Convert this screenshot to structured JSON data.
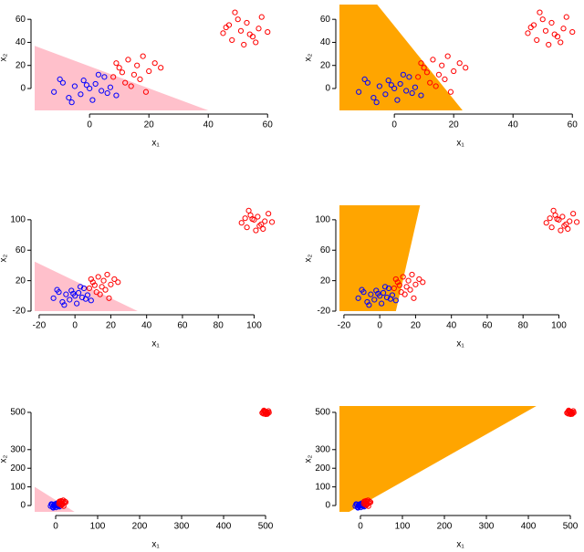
{
  "chart_data": [
    {
      "type": "scatter",
      "xlabel": "x₁",
      "ylabel": "x₂",
      "xlim": [
        -18.5,
        63
      ],
      "ylim": [
        -19,
        72.8
      ],
      "xticks": [
        0,
        20,
        40,
        60
      ],
      "yticks": [
        0,
        20,
        40,
        60
      ],
      "region": {
        "color": "#ffc0cb",
        "x": [
          -18.5,
          40,
          -18.5
        ],
        "y": [
          37,
          -19,
          -19
        ]
      },
      "series": [
        {
          "color": "#0000ff",
          "x": [
            -12,
            -9,
            -7,
            -5,
            -3,
            -2,
            0,
            1,
            2,
            4,
            5,
            7,
            9,
            -6,
            3,
            -1,
            6,
            -10
          ],
          "y": [
            -3,
            5,
            -8,
            2,
            -5,
            7,
            0,
            -10,
            4,
            -2,
            10,
            1,
            -6,
            -12,
            12,
            3,
            -4,
            8
          ]
        },
        {
          "color": "#ff0000",
          "x": [
            8,
            10,
            12,
            13,
            15,
            16,
            17,
            18,
            20,
            22,
            14,
            11,
            19,
            24,
            9,
            45,
            47,
            48,
            50,
            51,
            52,
            53,
            55,
            57,
            58,
            49,
            54,
            46,
            56,
            60
          ],
          "y": [
            10,
            18,
            5,
            25,
            12,
            20,
            8,
            28,
            15,
            22,
            2,
            14,
            -3,
            18,
            22,
            48,
            55,
            42,
            60,
            50,
            38,
            57,
            45,
            52,
            62,
            66,
            47,
            53,
            40,
            49
          ]
        }
      ]
    },
    {
      "type": "scatter",
      "xlabel": "x₁",
      "ylabel": "x₂",
      "xlim": [
        -18.5,
        63
      ],
      "ylim": [
        -19,
        72.8
      ],
      "xticks": [
        0,
        20,
        40,
        60
      ],
      "yticks": [
        0,
        20,
        40,
        60
      ],
      "region": {
        "color": "#ffa500",
        "x": [
          -18.5,
          -5.8,
          23,
          -18.5
        ],
        "y": [
          72.8,
          72.8,
          -19,
          -19
        ]
      },
      "series": [
        {
          "color": "#0000ff",
          "x": [
            -12,
            -9,
            -7,
            -5,
            -3,
            -2,
            0,
            1,
            2,
            4,
            5,
            7,
            9,
            -6,
            3,
            -1,
            6,
            -10
          ],
          "y": [
            -3,
            5,
            -8,
            2,
            -5,
            7,
            0,
            -10,
            4,
            -2,
            10,
            1,
            -6,
            -12,
            12,
            3,
            -4,
            8
          ]
        },
        {
          "color": "#ff0000",
          "x": [
            8,
            10,
            12,
            13,
            15,
            16,
            17,
            18,
            20,
            22,
            14,
            11,
            19,
            24,
            9,
            45,
            47,
            48,
            50,
            51,
            52,
            53,
            55,
            57,
            58,
            49,
            54,
            46,
            56,
            60
          ],
          "y": [
            10,
            18,
            5,
            25,
            12,
            20,
            8,
            28,
            15,
            22,
            2,
            14,
            -3,
            18,
            22,
            48,
            55,
            42,
            60,
            50,
            38,
            57,
            45,
            52,
            62,
            66,
            47,
            53,
            40,
            49
          ]
        }
      ]
    },
    {
      "type": "scatter",
      "xlabel": "x₁",
      "ylabel": "x₂",
      "xlim": [
        -22.5,
        112.5
      ],
      "ylim": [
        -20,
        119
      ],
      "xticks": [
        -20,
        0,
        20,
        40,
        60,
        80,
        100
      ],
      "yticks": [
        -20,
        20,
        60,
        100
      ],
      "region": {
        "color": "#ffc0cb",
        "x": [
          -22.5,
          35,
          -22.5
        ],
        "y": [
          45,
          -20,
          -20
        ]
      },
      "series": [
        {
          "color": "#0000ff",
          "x": [
            -12,
            -9,
            -7,
            -5,
            -3,
            -2,
            0,
            1,
            2,
            4,
            5,
            7,
            9,
            -6,
            3,
            -1,
            6,
            -10
          ],
          "y": [
            -3,
            5,
            -8,
            2,
            -5,
            7,
            0,
            -10,
            4,
            -2,
            10,
            1,
            -6,
            -12,
            12,
            3,
            -4,
            8
          ]
        },
        {
          "color": "#ff0000",
          "x": [
            8,
            10,
            12,
            13,
            15,
            16,
            17,
            18,
            20,
            22,
            14,
            11,
            19,
            24,
            9,
            93,
            95,
            96,
            98,
            100,
            101,
            102,
            104,
            106,
            108,
            97,
            103,
            99,
            105,
            110
          ],
          "y": [
            10,
            18,
            5,
            25,
            12,
            20,
            8,
            28,
            15,
            22,
            2,
            14,
            -3,
            18,
            22,
            96,
            102,
            90,
            106,
            100,
            86,
            104,
            94,
            98,
            108,
            112,
            92,
            101,
            88,
            97
          ]
        }
      ]
    },
    {
      "type": "scatter",
      "xlabel": "x₁",
      "ylabel": "x₂",
      "xlim": [
        -22.5,
        112.5
      ],
      "ylim": [
        -20,
        119
      ],
      "xticks": [
        -20,
        0,
        20,
        40,
        60,
        80,
        100
      ],
      "yticks": [
        -20,
        20,
        60,
        100
      ],
      "region": {
        "color": "#ffa500",
        "x": [
          -22.5,
          22.5,
          9,
          -22.5
        ],
        "y": [
          119,
          119,
          -20,
          -20
        ]
      },
      "series": [
        {
          "color": "#0000ff",
          "x": [
            -12,
            -9,
            -7,
            -5,
            -3,
            -2,
            0,
            1,
            2,
            4,
            5,
            7,
            9,
            -6,
            3,
            -1,
            6,
            -10
          ],
          "y": [
            -3,
            5,
            -8,
            2,
            -5,
            7,
            0,
            -10,
            4,
            -2,
            10,
            1,
            -6,
            -12,
            12,
            3,
            -4,
            8
          ]
        },
        {
          "color": "#ff0000",
          "x": [
            8,
            10,
            12,
            13,
            15,
            16,
            17,
            18,
            20,
            22,
            14,
            11,
            19,
            24,
            9,
            93,
            95,
            96,
            98,
            100,
            101,
            102,
            104,
            106,
            108,
            97,
            103,
            99,
            105,
            110
          ],
          "y": [
            10,
            18,
            5,
            25,
            12,
            20,
            8,
            28,
            15,
            22,
            2,
            14,
            -3,
            18,
            22,
            96,
            102,
            90,
            106,
            100,
            86,
            104,
            94,
            98,
            108,
            112,
            92,
            101,
            88,
            97
          ]
        }
      ]
    },
    {
      "type": "scatter",
      "xlabel": "x₁",
      "ylabel": "x₂",
      "xlim": [
        -50,
        526
      ],
      "ylim": [
        -34,
        534
      ],
      "xticks": [
        0,
        100,
        200,
        300,
        400,
        500
      ],
      "yticks": [
        0,
        100,
        200,
        300,
        500
      ],
      "region": {
        "color": "#ffc0cb",
        "x": [
          -50,
          45,
          -50
        ],
        "y": [
          100,
          -34,
          -34
        ]
      },
      "series": [
        {
          "color": "#0000ff",
          "x": [
            -12,
            -9,
            -7,
            -5,
            -3,
            -2,
            0,
            1,
            2,
            4,
            5,
            7,
            9,
            -6,
            3,
            -1,
            6,
            -10
          ],
          "y": [
            -3,
            5,
            -8,
            2,
            -5,
            7,
            0,
            -10,
            4,
            -2,
            10,
            1,
            -6,
            -12,
            12,
            3,
            -4,
            8
          ]
        },
        {
          "color": "#ff0000",
          "x": [
            8,
            10,
            12,
            13,
            15,
            16,
            17,
            18,
            20,
            22,
            14,
            11,
            19,
            24,
            9,
            492,
            494,
            495,
            497,
            499,
            500,
            501,
            503,
            505,
            507,
            496,
            502,
            498,
            504,
            508
          ],
          "y": [
            10,
            18,
            5,
            25,
            12,
            20,
            8,
            28,
            15,
            22,
            2,
            14,
            -3,
            18,
            22,
            497,
            502,
            493,
            506,
            500,
            490,
            504,
            495,
            498,
            507,
            510,
            494,
            501,
            491,
            499
          ]
        }
      ]
    },
    {
      "type": "scatter",
      "xlabel": "x₁",
      "ylabel": "x₂",
      "xlim": [
        -50,
        526
      ],
      "ylim": [
        -34,
        534
      ],
      "xticks": [
        0,
        100,
        200,
        300,
        400,
        500
      ],
      "yticks": [
        0,
        100,
        200,
        300,
        500
      ],
      "region": {
        "color": "#ffa500",
        "x": [
          -50,
          419,
          -27,
          -50
        ],
        "y": [
          534,
          534,
          -34,
          -34
        ]
      },
      "series": [
        {
          "color": "#0000ff",
          "x": [
            -12,
            -9,
            -7,
            -5,
            -3,
            -2,
            0,
            1,
            2,
            4,
            5,
            7,
            9,
            -6,
            3,
            -1,
            6,
            -10
          ],
          "y": [
            -3,
            5,
            -8,
            2,
            -5,
            7,
            0,
            -10,
            4,
            -2,
            10,
            1,
            -6,
            -12,
            12,
            3,
            -4,
            8
          ]
        },
        {
          "color": "#ff0000",
          "x": [
            8,
            10,
            12,
            13,
            15,
            16,
            17,
            18,
            20,
            22,
            14,
            11,
            19,
            24,
            9,
            492,
            494,
            495,
            497,
            499,
            500,
            501,
            503,
            505,
            507,
            496,
            502,
            498,
            504,
            508
          ],
          "y": [
            10,
            18,
            5,
            25,
            12,
            20,
            8,
            28,
            15,
            22,
            2,
            14,
            -3,
            18,
            22,
            497,
            502,
            493,
            506,
            500,
            490,
            504,
            495,
            498,
            507,
            510,
            494,
            501,
            491,
            499
          ]
        }
      ]
    }
  ]
}
